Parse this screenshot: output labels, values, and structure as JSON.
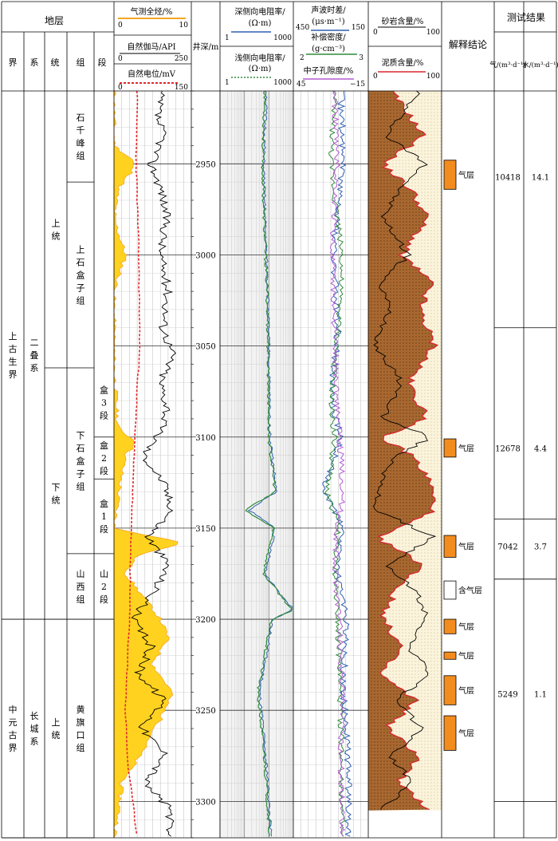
{
  "header": {
    "strata_title": "地层",
    "depth_title": "井深/m",
    "interp_title": "解释结论",
    "test_title": "测试结果",
    "level_labels": [
      "界",
      "系",
      "统",
      "组",
      "段"
    ],
    "gas_total": {
      "label": "气测全烃/%",
      "min": "0",
      "max": "10",
      "color": "#f5a623"
    },
    "gamma": {
      "label": "自然伽马/API",
      "min": "0",
      "max": "250",
      "color": "#000000"
    },
    "sp": {
      "label": "自然电位/mV",
      "min": "0",
      "max": "150",
      "color": "#e0282a"
    },
    "deep_res": {
      "label": "深侧向电阻率/",
      "unit": "(Ω·m)",
      "min": "1",
      "max": "1000",
      "color": "#2f5fb0"
    },
    "shallow_res": {
      "label": "浅侧向电阻率/",
      "unit": "(Ω·m)",
      "min": "1",
      "max": "1000",
      "color": "#2e8b3a"
    },
    "sonic": {
      "label": "声波时差/",
      "unit": "(μs·m⁻¹)",
      "min": "450",
      "max": "150",
      "color": "#2f5fb0"
    },
    "density": {
      "label": "补偿密度/",
      "unit": "(g·cm⁻³)",
      "min": "2",
      "max": "3",
      "color": "#2e8b3a"
    },
    "neutron": {
      "label": "中子孔隙度/%",
      "min": "45",
      "max": "−15",
      "color": "#b45ad2"
    },
    "sand": {
      "label": "砂岩含量/%",
      "min": "0",
      "max": "100",
      "color": "#000000"
    },
    "shale": {
      "label": "泥质含量/%",
      "min": "0",
      "max": "100",
      "color": "#d9262e"
    },
    "test_gas": "气/(m³·d⁻¹)",
    "test_water": "水/(m³·d⁻¹)"
  },
  "strata": {
    "erathem": [
      {
        "name": "上古生界",
        "top": 2910,
        "bottom": 3200
      },
      {
        "name": "中元古界",
        "top": 3200,
        "bottom": 3320
      }
    ],
    "system": [
      {
        "name": "二叠系",
        "top": 2910,
        "bottom": 3200
      },
      {
        "name": "长城系",
        "top": 3200,
        "bottom": 3320
      }
    ],
    "series": [
      {
        "name": "上统",
        "top": 2910,
        "bottom": 3062
      },
      {
        "name": "下统",
        "top": 3062,
        "bottom": 3200
      },
      {
        "name": "上统",
        "top": 3200,
        "bottom": 3320
      }
    ],
    "formation": [
      {
        "name": "石千峰组",
        "top": 2910,
        "bottom": 2960
      },
      {
        "name": "上石盒子组",
        "top": 2960,
        "bottom": 3062
      },
      {
        "name": "下石盒子组",
        "top": 3062,
        "bottom": 3164
      },
      {
        "name": "山西组",
        "top": 3164,
        "bottom": 3200
      },
      {
        "name": "黄旗口组",
        "top": 3200,
        "bottom": 3320
      }
    ],
    "member": [
      {
        "name": "盒3段",
        "top": 3062,
        "bottom": 3100
      },
      {
        "name": "盒2段",
        "top": 3100,
        "bottom": 3123
      },
      {
        "name": "盒1段",
        "top": 3123,
        "bottom": 3164
      },
      {
        "name": "山2段",
        "top": 3164,
        "bottom": 3200
      }
    ]
  },
  "depth_ticks": [
    "2950",
    "3000",
    "3050",
    "3100",
    "3150",
    "3200",
    "3250",
    "3300"
  ],
  "interpretation": [
    {
      "label": "气层",
      "top": 2948,
      "bottom": 2964,
      "type": "gas"
    },
    {
      "label": "气层",
      "top": 3101,
      "bottom": 3111,
      "type": "gas"
    },
    {
      "label": "气层",
      "top": 3154,
      "bottom": 3166,
      "type": "gas"
    },
    {
      "label": "含气层",
      "top": 3179,
      "bottom": 3189,
      "type": "gas-bearing"
    },
    {
      "label": "气层",
      "top": 3200,
      "bottom": 3208,
      "type": "gas"
    },
    {
      "label": "气层",
      "top": 3218,
      "bottom": 3222,
      "type": "gas"
    },
    {
      "label": "气层",
      "top": 3231,
      "bottom": 3247,
      "type": "gas"
    },
    {
      "label": "气层",
      "top": 3253,
      "bottom": 3272,
      "type": "gas"
    }
  ],
  "test_results": [
    {
      "gas": "10418",
      "water": "14.1",
      "depth": 2957
    },
    {
      "gas": "12678",
      "water": "4.4",
      "depth": 3106
    },
    {
      "gas": "7042",
      "water": "3.7",
      "depth": 3160
    },
    {
      "gas": "5249",
      "water": "1.1",
      "depth": 3241
    }
  ],
  "chart_data": {
    "type": "line",
    "title": "",
    "depth_range": [
      2910,
      3320
    ],
    "depth_label": "井深/m",
    "depth_ticks": [
      2950,
      3000,
      3050,
      3100,
      3150,
      3200,
      3250,
      3300
    ],
    "series": [
      {
        "name": "自然伽马/API",
        "range": [
          0,
          250
        ],
        "depth": [
          2910,
          2925,
          2935,
          2950,
          2965,
          2980,
          3000,
          3020,
          3040,
          3055,
          3070,
          3085,
          3100,
          3110,
          3125,
          3140,
          3155,
          3170,
          3185,
          3200,
          3215,
          3230,
          3245,
          3260,
          3275,
          3290,
          3305,
          3320
        ],
        "values": [
          150,
          140,
          160,
          120,
          155,
          170,
          150,
          175,
          160,
          190,
          150,
          175,
          140,
          95,
          160,
          190,
          110,
          175,
          130,
          60,
          120,
          80,
          165,
          90,
          170,
          100,
          185,
          170
        ]
      },
      {
        "name": "自然电位/mV",
        "range": [
          0,
          150
        ],
        "depth": [
          2910,
          2950,
          3000,
          3050,
          3100,
          3120,
          3150,
          3200,
          3250,
          3280,
          3320
        ],
        "values": [
          45,
          43,
          48,
          50,
          40,
          38,
          33,
          30,
          22,
          27,
          45
        ]
      },
      {
        "name": "气测全烃/%",
        "range": [
          0,
          10
        ],
        "depth": [
          2910,
          2940,
          2948,
          2955,
          2964,
          2980,
          3000,
          3020,
          3060,
          3095,
          3103,
          3110,
          3120,
          3150,
          3158,
          3165,
          3175,
          3200,
          3210,
          3225,
          3240,
          3255,
          3270,
          3290,
          3310,
          3320
        ],
        "values": [
          0,
          0,
          2.5,
          2.2,
          0.5,
          0,
          1.5,
          0,
          0,
          0.5,
          3,
          1.5,
          1,
          0,
          9,
          3,
          1.5,
          6,
          7,
          5,
          7.5,
          6,
          4,
          1,
          0.5,
          0
        ],
        "fill": true
      },
      {
        "name": "深侧向电阻率/(Ω·m)",
        "scale": "log",
        "range": [
          1,
          1000
        ],
        "depth": [
          2910,
          2950,
          2985,
          3020,
          3060,
          3100,
          3130,
          3140,
          3150,
          3175,
          3195,
          3200,
          3240,
          3280,
          3320
        ],
        "values": [
          80,
          60,
          70,
          90,
          100,
          110,
          200,
          15,
          180,
          70,
          1000,
          150,
          40,
          80,
          120
        ]
      },
      {
        "name": "浅侧向电阻率/(Ω·m)",
        "scale": "log",
        "range": [
          1,
          1000
        ],
        "depth": [
          2910,
          2950,
          2985,
          3020,
          3060,
          3100,
          3130,
          3140,
          3150,
          3175,
          3195,
          3200,
          3240,
          3280,
          3320
        ],
        "values": [
          70,
          55,
          65,
          85,
          95,
          100,
          180,
          10,
          160,
          60,
          900,
          130,
          35,
          70,
          110
        ]
      },
      {
        "name": "声波时差/(μs·m⁻¹)",
        "range": [
          450,
          150
        ],
        "depth": [
          2910,
          2950,
          3000,
          3040,
          3080,
          3100,
          3130,
          3150,
          3170,
          3200,
          3240,
          3280,
          3320
        ],
        "values": [
          260,
          250,
          290,
          270,
          300,
          260,
          330,
          250,
          280,
          240,
          250,
          230,
          230
        ]
      },
      {
        "name": "补偿密度/(g·cm⁻³)",
        "range": [
          2,
          3
        ],
        "depth": [
          2910,
          2950,
          3000,
          3040,
          3080,
          3100,
          3130,
          3150,
          3170,
          3200,
          3240,
          3280,
          3320
        ],
        "values": [
          2.55,
          2.5,
          2.65,
          2.6,
          2.5,
          2.55,
          2.45,
          2.6,
          2.55,
          2.6,
          2.62,
          2.65,
          2.64
        ]
      },
      {
        "name": "中子孔隙度/%",
        "range": [
          45,
          -15
        ],
        "depth": [
          2910,
          2950,
          3000,
          3040,
          3080,
          3100,
          3130,
          3150,
          3170,
          3200,
          3240,
          3280,
          3320
        ],
        "values": [
          12,
          10,
          14,
          12,
          10,
          8,
          5,
          10,
          12,
          8,
          6,
          7,
          5
        ]
      },
      {
        "name": "泥质含量/%",
        "range": [
          0,
          100
        ],
        "depth": [
          2910,
          2920,
          2935,
          2950,
          2965,
          2980,
          3000,
          3015,
          3030,
          3050,
          3070,
          3090,
          3100,
          3110,
          3125,
          3140,
          3155,
          3170,
          3185,
          3200,
          3215,
          3230,
          3245,
          3260,
          3275,
          3290,
          3305,
          3320
        ],
        "values": [
          30,
          50,
          75,
          20,
          60,
          80,
          45,
          85,
          70,
          90,
          55,
          80,
          15,
          60,
          85,
          90,
          10,
          75,
          35,
          20,
          45,
          15,
          65,
          25,
          70,
          40,
          85,
          80
        ]
      },
      {
        "name": "砂岩含量/%",
        "range": [
          0,
          100
        ],
        "depth": [
          2910,
          2920,
          2935,
          2950,
          2965,
          2980,
          3000,
          3015,
          3030,
          3050,
          3070,
          3090,
          3100,
          3110,
          3125,
          3140,
          3155,
          3170,
          3185,
          3200,
          3215,
          3230,
          3245,
          3260,
          3275,
          3290,
          3305,
          3320
        ],
        "values": [
          70,
          50,
          25,
          80,
          40,
          20,
          55,
          15,
          30,
          10,
          45,
          20,
          85,
          40,
          15,
          10,
          90,
          25,
          65,
          80,
          55,
          85,
          35,
          75,
          30,
          60,
          15,
          20
        ]
      }
    ]
  }
}
